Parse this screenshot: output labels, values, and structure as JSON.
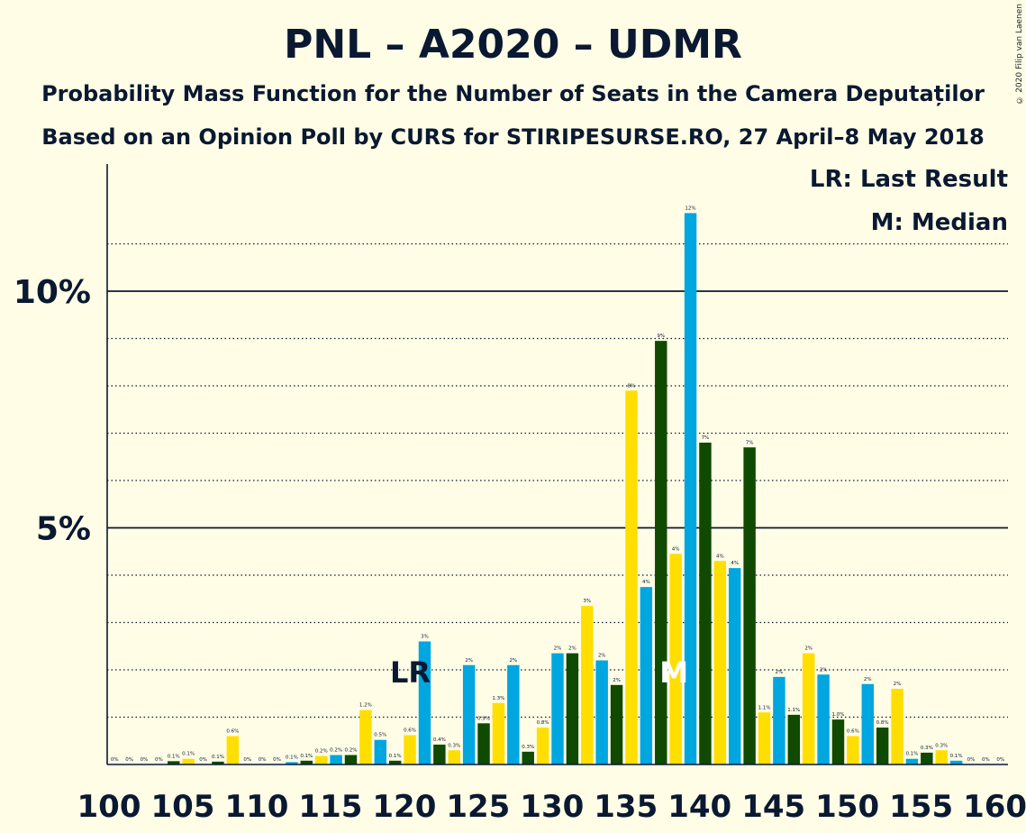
{
  "title": "PNL – A2020 – UDMR",
  "subtitle1": "Probability Mass Function for the Number of Seats in the Camera Deputaților",
  "subtitle2": "Based on an Opinion Poll by CURS for STIRIPESURSE.RO, 27 April–8 May 2018",
  "copyright": "© 2020 Filip van Laenen",
  "legend": {
    "lr": "LR: Last Result",
    "m": "M: Median"
  },
  "colors": {
    "blue": "#00A6E0",
    "green": "#0F4A00",
    "yellow": "#FFDE00",
    "background": "#FFFDE6"
  },
  "chart_data": {
    "type": "bar",
    "xlim": [
      100,
      160
    ],
    "ylim": [
      0,
      12.5
    ],
    "x_ticks": [
      "100",
      "105",
      "110",
      "115",
      "120",
      "125",
      "130",
      "135",
      "140",
      "145",
      "150",
      "155",
      "160"
    ],
    "y_ticks": [
      "5%",
      "10%"
    ],
    "last_result_seat": 121,
    "last_result_label": "LR",
    "median_seat": 138,
    "median_label": "M",
    "bars": [
      {
        "x": 100,
        "value": 0.0,
        "label": "0%"
      },
      {
        "x": 101,
        "value": 0.0,
        "label": "0%"
      },
      {
        "x": 102,
        "value": 0.0,
        "label": "0%"
      },
      {
        "x": 103,
        "value": 0.0,
        "label": "0%"
      },
      {
        "x": 104,
        "value": 0.07,
        "label": "0.1%"
      },
      {
        "x": 105,
        "value": 0.12,
        "label": "0.1%"
      },
      {
        "x": 106,
        "value": 0.0,
        "label": "0%"
      },
      {
        "x": 107,
        "value": 0.06,
        "label": "0.1%"
      },
      {
        "x": 108,
        "value": 0.6,
        "label": "0.6%"
      },
      {
        "x": 109,
        "value": 0.0,
        "label": "0%"
      },
      {
        "x": 110,
        "value": 0.0,
        "label": "0%"
      },
      {
        "x": 111,
        "value": 0.0,
        "label": "0%"
      },
      {
        "x": 112,
        "value": 0.05,
        "label": "0.1%"
      },
      {
        "x": 113,
        "value": 0.08,
        "label": "0.1%"
      },
      {
        "x": 114,
        "value": 0.18,
        "label": "0.2%"
      },
      {
        "x": 115,
        "value": 0.2,
        "label": "0.2%"
      },
      {
        "x": 116,
        "value": 0.2,
        "label": "0.2%"
      },
      {
        "x": 117,
        "value": 1.15,
        "label": "1.2%"
      },
      {
        "x": 118,
        "value": 0.52,
        "label": "0.5%"
      },
      {
        "x": 119,
        "value": 0.08,
        "label": "0.1%"
      },
      {
        "x": 120,
        "value": 0.62,
        "label": "0.6%"
      },
      {
        "x": 121,
        "value": 2.6,
        "label": "3%"
      },
      {
        "x": 122,
        "value": 0.42,
        "label": "0.4%"
      },
      {
        "x": 123,
        "value": 0.3,
        "label": "0.3%"
      },
      {
        "x": 124,
        "value": 2.1,
        "label": "2%"
      },
      {
        "x": 125,
        "value": 0.87,
        "label": "0.9%"
      },
      {
        "x": 126,
        "value": 1.3,
        "label": "1.3%"
      },
      {
        "x": 127,
        "value": 2.1,
        "label": "2%"
      },
      {
        "x": 128,
        "value": 0.27,
        "label": "0.3%"
      },
      {
        "x": 129,
        "value": 0.78,
        "label": "0.8%"
      },
      {
        "x": 130,
        "value": 2.35,
        "label": "2%"
      },
      {
        "x": 131,
        "value": 2.35,
        "label": "2%"
      },
      {
        "x": 132,
        "value": 3.35,
        "label": "3%"
      },
      {
        "x": 133,
        "value": 2.2,
        "label": "2%"
      },
      {
        "x": 134,
        "value": 1.68,
        "label": "2%"
      },
      {
        "x": 135,
        "value": 7.9,
        "label": "8%"
      },
      {
        "x": 136,
        "value": 3.75,
        "label": "4%"
      },
      {
        "x": 137,
        "value": 8.95,
        "label": "9%"
      },
      {
        "x": 138,
        "value": 4.45,
        "label": "4%"
      },
      {
        "x": 139,
        "value": 11.65,
        "label": "12%"
      },
      {
        "x": 140,
        "value": 6.8,
        "label": "7%"
      },
      {
        "x": 141,
        "value": 4.3,
        "label": "4%"
      },
      {
        "x": 142,
        "value": 4.15,
        "label": "4%"
      },
      {
        "x": 143,
        "value": 6.7,
        "label": "7%"
      },
      {
        "x": 144,
        "value": 1.1,
        "label": "1.1%"
      },
      {
        "x": 145,
        "value": 1.85,
        "label": "2%"
      },
      {
        "x": 146,
        "value": 1.05,
        "label": "1.1%"
      },
      {
        "x": 147,
        "value": 2.35,
        "label": "2%"
      },
      {
        "x": 148,
        "value": 1.9,
        "label": "2%"
      },
      {
        "x": 149,
        "value": 0.95,
        "label": "1.0%"
      },
      {
        "x": 150,
        "value": 0.6,
        "label": "0.6%"
      },
      {
        "x": 151,
        "value": 1.7,
        "label": "2%"
      },
      {
        "x": 152,
        "value": 0.78,
        "label": "0.8%"
      },
      {
        "x": 153,
        "value": 1.6,
        "label": "2%"
      },
      {
        "x": 154,
        "value": 0.12,
        "label": "0.1%"
      },
      {
        "x": 155,
        "value": 0.25,
        "label": "0.3%"
      },
      {
        "x": 156,
        "value": 0.3,
        "label": "0.3%"
      },
      {
        "x": 157,
        "value": 0.08,
        "label": "0.1%"
      },
      {
        "x": 158,
        "value": 0.0,
        "label": "0%"
      },
      {
        "x": 159,
        "value": 0.0,
        "label": "0%"
      },
      {
        "x": 160,
        "value": 0.0,
        "label": "0%"
      }
    ]
  }
}
